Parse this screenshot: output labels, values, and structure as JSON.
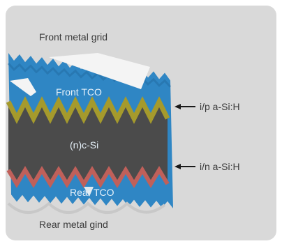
{
  "diagram": {
    "labels": {
      "front_metal_grid": "Front metal grid",
      "front_tco": "Front TCO",
      "csi": "(n)c-Si",
      "rear_tco": "Rear TCO",
      "rear_metal_grid": "Rear metal gind",
      "ip_layer": "i/p a-Si:H",
      "in_layer": "i/n a-Si:H"
    },
    "colors": {
      "background": "#d9d9d9",
      "tco": "#2f86c4",
      "tco_dark": "#256fa6",
      "silicon": "#4b4b4b",
      "ip_layer": "#a59a2c",
      "in_layer": "#c0605a",
      "metal": "#f4f4f4",
      "text_dark": "#3a3a3a",
      "text_light": "#e6f1fa"
    }
  }
}
